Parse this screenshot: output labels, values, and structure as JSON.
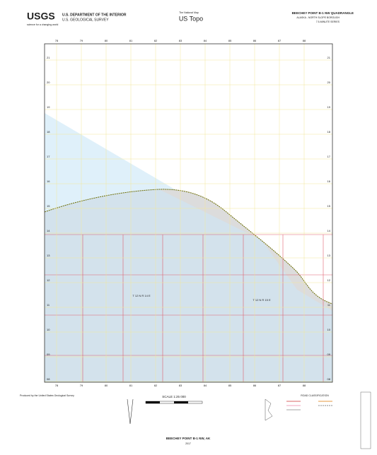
{
  "header": {
    "agency_logo": "USGS",
    "agency_tagline": "science for a changing world",
    "department": "U.S. DEPARTMENT OF THE INTERIOR",
    "survey": "U.S. GEOLOGICAL SURVEY",
    "product_tagline": "The National Map",
    "product": "US Topo",
    "title": "BEECHEY POINT B-1 NW QUADRANGLE",
    "state": "ALASKA - NORTH SLOPE BOROUGH",
    "series": "7.5-MINUTE SERIES"
  },
  "grid": {
    "eastings": [
      "78",
      "79",
      "80",
      "81",
      "82",
      "83",
      "84",
      "85",
      "86",
      "87",
      "88"
    ],
    "northings": [
      "21",
      "20",
      "19",
      "18",
      "17",
      "16",
      "15",
      "14",
      "13",
      "12",
      "11",
      "10",
      "09",
      "08"
    ]
  },
  "map_labels": {
    "township_west": "T 12 N R 14 E",
    "township_east": "T 12 N R 15 E"
  },
  "footer": {
    "producer": "Produced by the United States Geological Survey",
    "scale": "SCALE 1:25 000",
    "legend_title": "ROAD CLASSIFICATION",
    "quad_name": "BEECHEY POINT B-1 NW, AK",
    "year": "2017"
  }
}
